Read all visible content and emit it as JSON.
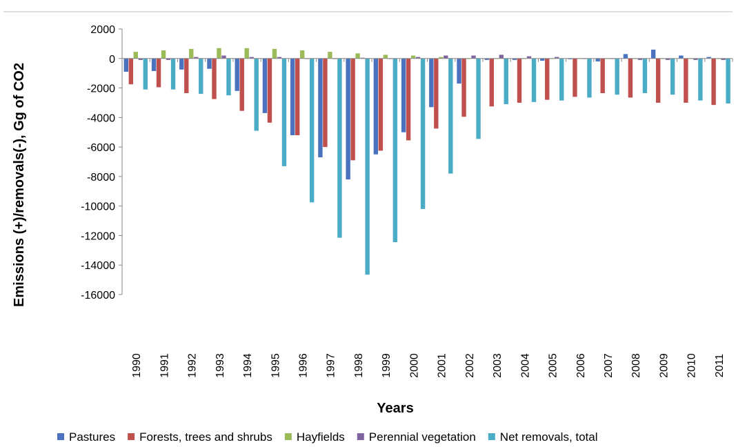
{
  "chart_data": {
    "type": "bar",
    "title": "",
    "xlabel": "Years",
    "ylabel": "Emissions (+)/removals(-), Gg of CO2",
    "ylim": [
      -16000,
      2000
    ],
    "yticks": [
      2000,
      0,
      -2000,
      -4000,
      -6000,
      -8000,
      -10000,
      -12000,
      -14000,
      -16000
    ],
    "grid": false,
    "legend_position": "bottom",
    "categories": [
      "1990",
      "1991",
      "1992",
      "1993",
      "1994",
      "1995",
      "1996",
      "1997",
      "1998",
      "1999",
      "2000",
      "2001",
      "2002",
      "2003",
      "2004",
      "2005",
      "2006",
      "2007",
      "2008",
      "2009",
      "2010",
      "2011"
    ],
    "series": [
      {
        "name": "Pastures",
        "color": "#4a72bf",
        "values": [
          -900,
          -850,
          -750,
          -700,
          -2200,
          -3700,
          -5200,
          -6700,
          -8200,
          -6500,
          -5000,
          -3300,
          -1700,
          -100,
          -100,
          -150,
          -50,
          -200,
          300,
          600,
          200,
          100
        ]
      },
      {
        "name": "Forests, trees and shrubs",
        "color": "#c0504d",
        "values": [
          -1750,
          -1950,
          -2350,
          -2750,
          -3550,
          -4350,
          -5200,
          -6000,
          -6900,
          -6250,
          -5550,
          -4750,
          -3950,
          -3250,
          -3000,
          -2800,
          -2600,
          -2350,
          -2650,
          -3000,
          -3000,
          -3150
        ]
      },
      {
        "name": "Hayfields",
        "color": "#9bbb59",
        "values": [
          450,
          550,
          650,
          700,
          700,
          650,
          550,
          450,
          350,
          250,
          200,
          100,
          0,
          0,
          0,
          0,
          0,
          0,
          0,
          0,
          0,
          0
        ]
      },
      {
        "name": "Perennial vegetation",
        "color": "#8064a2",
        "values": [
          -100,
          -100,
          100,
          200,
          100,
          100,
          0,
          0,
          50,
          0,
          100,
          200,
          200,
          250,
          150,
          100,
          0,
          0,
          -100,
          -100,
          -100,
          -100
        ]
      },
      {
        "name": "Net removals, total",
        "color": "#4bacc6",
        "values": [
          -2100,
          -2100,
          -2400,
          -2500,
          -4900,
          -7300,
          -9750,
          -12150,
          -14650,
          -12450,
          -10200,
          -7800,
          -5450,
          -3100,
          -2950,
          -2850,
          -2650,
          -2450,
          -2350,
          -2450,
          -2850,
          -3050
        ]
      }
    ]
  }
}
